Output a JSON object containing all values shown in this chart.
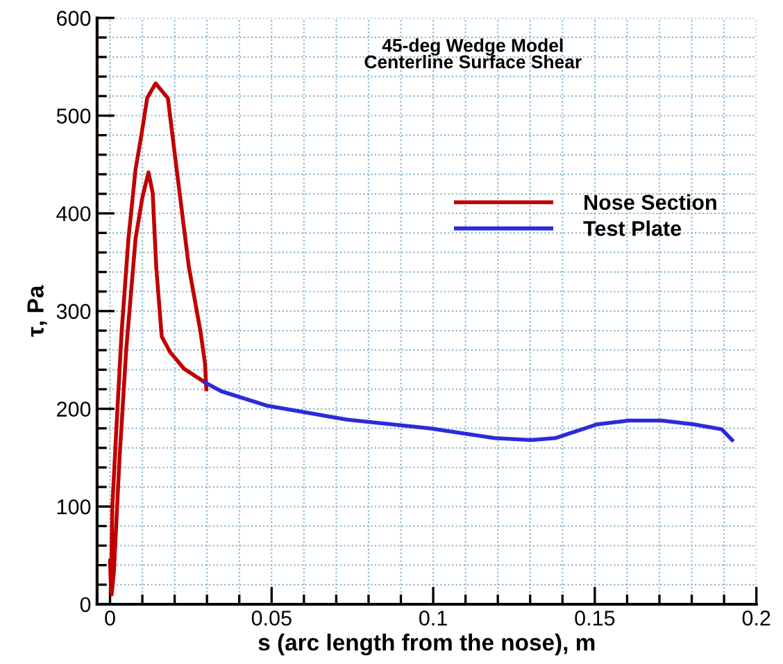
{
  "chart_data": {
    "type": "line",
    "title": "45-deg Wedge Model\nCenterline Surface Shear",
    "xlabel": "s (arc length from the nose), m",
    "ylabel": "τ, Pa",
    "series": [
      {
        "name": "Nose Section",
        "color": "#c00000",
        "x": [
          0.0298,
          0.0294,
          0.028,
          0.0244,
          0.0201,
          0.0179,
          0.0141,
          0.0115,
          0.0098,
          0.0079,
          0.0057,
          0.0036,
          0.0022,
          0.0007,
          0.0003,
          0.0,
          0.0005,
          0.0012,
          0.0029,
          0.005,
          0.0079,
          0.01,
          0.0119,
          0.0132,
          0.0143,
          0.016,
          0.0186,
          0.0229,
          0.0294
        ],
        "values": [
          220,
          246,
          279,
          345,
          459,
          518,
          533,
          518,
          482,
          445,
          374,
          279,
          194,
          99,
          14,
          45,
          10,
          33,
          147,
          260,
          374,
          416,
          442,
          421,
          345,
          274,
          258,
          241,
          227
        ]
      },
      {
        "name": "Test Plate",
        "color": "#2b2bdc",
        "x": [
          0.0294,
          0.0344,
          0.0488,
          0.0731,
          0.099,
          0.119,
          0.1305,
          0.1377,
          0.1506,
          0.1606,
          0.1707,
          0.1807,
          0.1893,
          0.1925
        ],
        "values": [
          227,
          218,
          203,
          189,
          180,
          170,
          168,
          170,
          184,
          188,
          188,
          184,
          179,
          168
        ]
      }
    ],
    "xlim": [
      -0.004,
      0.2
    ],
    "ylim": [
      0,
      600
    ],
    "xticks": [
      0,
      {
        "value": 0.01,
        "label": null
      },
      {
        "value": 0.02,
        "label": null
      },
      {
        "value": 0.03,
        "label": null
      },
      {
        "value": 0.04,
        "label": null
      },
      0.05,
      {
        "value": 0.06,
        "label": null
      },
      {
        "value": 0.07,
        "label": null
      },
      {
        "value": 0.08,
        "label": null
      },
      {
        "value": 0.09,
        "label": null
      },
      0.1,
      {
        "value": 0.11,
        "label": null
      },
      {
        "value": 0.12,
        "label": null
      },
      {
        "value": 0.13,
        "label": null
      },
      {
        "value": 0.14,
        "label": null
      },
      0.15,
      {
        "value": 0.16,
        "label": null
      },
      {
        "value": 0.17,
        "label": null
      },
      {
        "value": 0.18,
        "label": null
      },
      {
        "value": 0.19,
        "label": null
      },
      0.2
    ],
    "yticks": [
      0,
      {
        "value": 20,
        "label": null
      },
      {
        "value": 40,
        "label": null
      },
      {
        "value": 60,
        "label": null
      },
      {
        "value": 80,
        "label": null
      },
      100,
      {
        "value": 120,
        "label": null
      },
      {
        "value": 140,
        "label": null
      },
      {
        "value": 160,
        "label": null
      },
      {
        "value": 180,
        "label": null
      },
      200,
      {
        "value": 220,
        "label": null
      },
      {
        "value": 240,
        "label": null
      },
      {
        "value": 260,
        "label": null
      },
      {
        "value": 280,
        "label": null
      },
      300,
      {
        "value": 320,
        "label": null
      },
      {
        "value": 340,
        "label": null
      },
      {
        "value": 360,
        "label": null
      },
      {
        "value": 380,
        "label": null
      },
      400,
      {
        "value": 420,
        "label": null
      },
      {
        "value": 440,
        "label": null
      },
      {
        "value": 460,
        "label": null
      },
      {
        "value": 480,
        "label": null
      },
      500,
      {
        "value": 520,
        "label": null
      },
      {
        "value": 540,
        "label": null
      },
      {
        "value": 560,
        "label": null
      },
      {
        "value": 580,
        "label": null
      },
      600
    ],
    "grid": true,
    "legend": "right",
    "line_style": "solid",
    "marker": "none"
  }
}
